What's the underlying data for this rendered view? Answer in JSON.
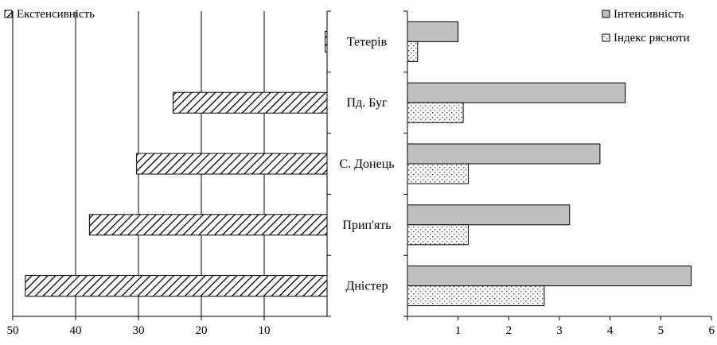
{
  "chart_data": [
    {
      "type": "bar",
      "orientation": "horizontal",
      "direction": "right-to-left",
      "categories": [
        "Тетерів",
        "Пд. Буг",
        "С. Донець",
        "Прип'ять",
        "Дністер"
      ],
      "series": [
        {
          "name": "Екстенсивність",
          "values": [
            0.3,
            24.5,
            30.3,
            37.8,
            48.0
          ],
          "pattern": "diagonal-hatch"
        }
      ],
      "xlim": [
        0,
        50
      ],
      "ticks": [
        "50",
        "40",
        "30",
        "20",
        "10"
      ],
      "grid": true,
      "legend": "top-left"
    },
    {
      "type": "bar",
      "orientation": "horizontal",
      "categories": [
        "Тетерів",
        "Пд. Буг",
        "С. Донець",
        "Прип'ять",
        "Дністер"
      ],
      "series": [
        {
          "name": "Інтенсивність",
          "values": [
            1.0,
            4.3,
            3.8,
            3.2,
            5.6
          ],
          "color": "#bfbfbf"
        },
        {
          "name": "Індекс рясноти",
          "values": [
            0.2,
            1.1,
            1.2,
            1.2,
            2.7
          ],
          "pattern": "dotted"
        }
      ],
      "xlim": [
        0,
        6
      ],
      "ticks": [
        "1",
        "2",
        "3",
        "4",
        "5",
        "6"
      ],
      "grid": false,
      "legend": "top-right"
    }
  ]
}
